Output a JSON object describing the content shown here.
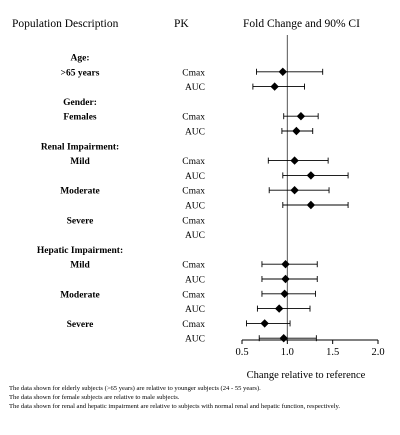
{
  "headers": {
    "population": "Population Description",
    "pk": "PK",
    "effect": "Fold Change and 90% CI"
  },
  "chart_data": {
    "type": "forest",
    "xlabel": "Change relative to reference",
    "xlim": [
      0.5,
      2.0
    ],
    "xticks": [
      "0.5",
      "1.0",
      "1.5",
      "2.0"
    ],
    "reference_line": 1.0,
    "rows": [
      {
        "group": "Age:",
        "subgroup": "",
        "pk": "",
        "est": null,
        "lo": null,
        "hi": null
      },
      {
        "group": "",
        "subgroup": ">65 years",
        "pk": "Cmax",
        "est": 0.95,
        "lo": 0.66,
        "hi": 1.39
      },
      {
        "group": "",
        "subgroup": "",
        "pk": "AUC",
        "est": 0.86,
        "lo": 0.62,
        "hi": 1.19
      },
      {
        "group": "Gender:",
        "subgroup": "",
        "pk": "",
        "est": null,
        "lo": null,
        "hi": null
      },
      {
        "group": "",
        "subgroup": "Females",
        "pk": "Cmax",
        "est": 1.15,
        "lo": 0.96,
        "hi": 1.34
      },
      {
        "group": "",
        "subgroup": "",
        "pk": "AUC",
        "est": 1.1,
        "lo": 0.94,
        "hi": 1.28
      },
      {
        "group": "Renal Impairment:",
        "subgroup": "",
        "pk": "",
        "est": null,
        "lo": null,
        "hi": null
      },
      {
        "group": "",
        "subgroup": "Mild",
        "pk": "Cmax",
        "est": 1.08,
        "lo": 0.79,
        "hi": 1.45
      },
      {
        "group": "",
        "subgroup": "",
        "pk": "AUC",
        "est": 1.26,
        "lo": 0.95,
        "hi": 1.67
      },
      {
        "group": "",
        "subgroup": "Moderate",
        "pk": "Cmax",
        "est": 1.08,
        "lo": 0.8,
        "hi": 1.46
      },
      {
        "group": "",
        "subgroup": "",
        "pk": "AUC",
        "est": 1.26,
        "lo": 0.95,
        "hi": 1.67
      },
      {
        "group": "",
        "subgroup": "Severe",
        "pk": "Cmax",
        "est": null,
        "lo": null,
        "hi": null
      },
      {
        "group": "",
        "subgroup": "",
        "pk": "AUC",
        "est": null,
        "lo": null,
        "hi": null
      },
      {
        "group": "Hepatic Impairment:",
        "subgroup": "",
        "pk": "",
        "est": null,
        "lo": null,
        "hi": null
      },
      {
        "group": "",
        "subgroup": "Mild",
        "pk": "Cmax",
        "est": 0.98,
        "lo": 0.72,
        "hi": 1.33
      },
      {
        "group": "",
        "subgroup": "",
        "pk": "AUC",
        "est": 0.98,
        "lo": 0.72,
        "hi": 1.33
      },
      {
        "group": "",
        "subgroup": "Moderate",
        "pk": "Cmax",
        "est": 0.97,
        "lo": 0.72,
        "hi": 1.31
      },
      {
        "group": "",
        "subgroup": "",
        "pk": "AUC",
        "est": 0.91,
        "lo": 0.67,
        "hi": 1.25
      },
      {
        "group": "",
        "subgroup": "Severe",
        "pk": "Cmax",
        "est": 0.75,
        "lo": 0.55,
        "hi": 1.03
      },
      {
        "group": "",
        "subgroup": "",
        "pk": "AUC",
        "est": 0.96,
        "lo": 0.69,
        "hi": 1.32
      }
    ]
  },
  "footnotes": [
    "The data shown for elderly subjects (>65 years) are relative to younger subjects (24 - 55 years).",
    "The data shown for female subjects are relative to male subjects.",
    "The data shown for renal and hepatic impairment are relative to subjects with normal renal and hepatic function, respectively."
  ]
}
